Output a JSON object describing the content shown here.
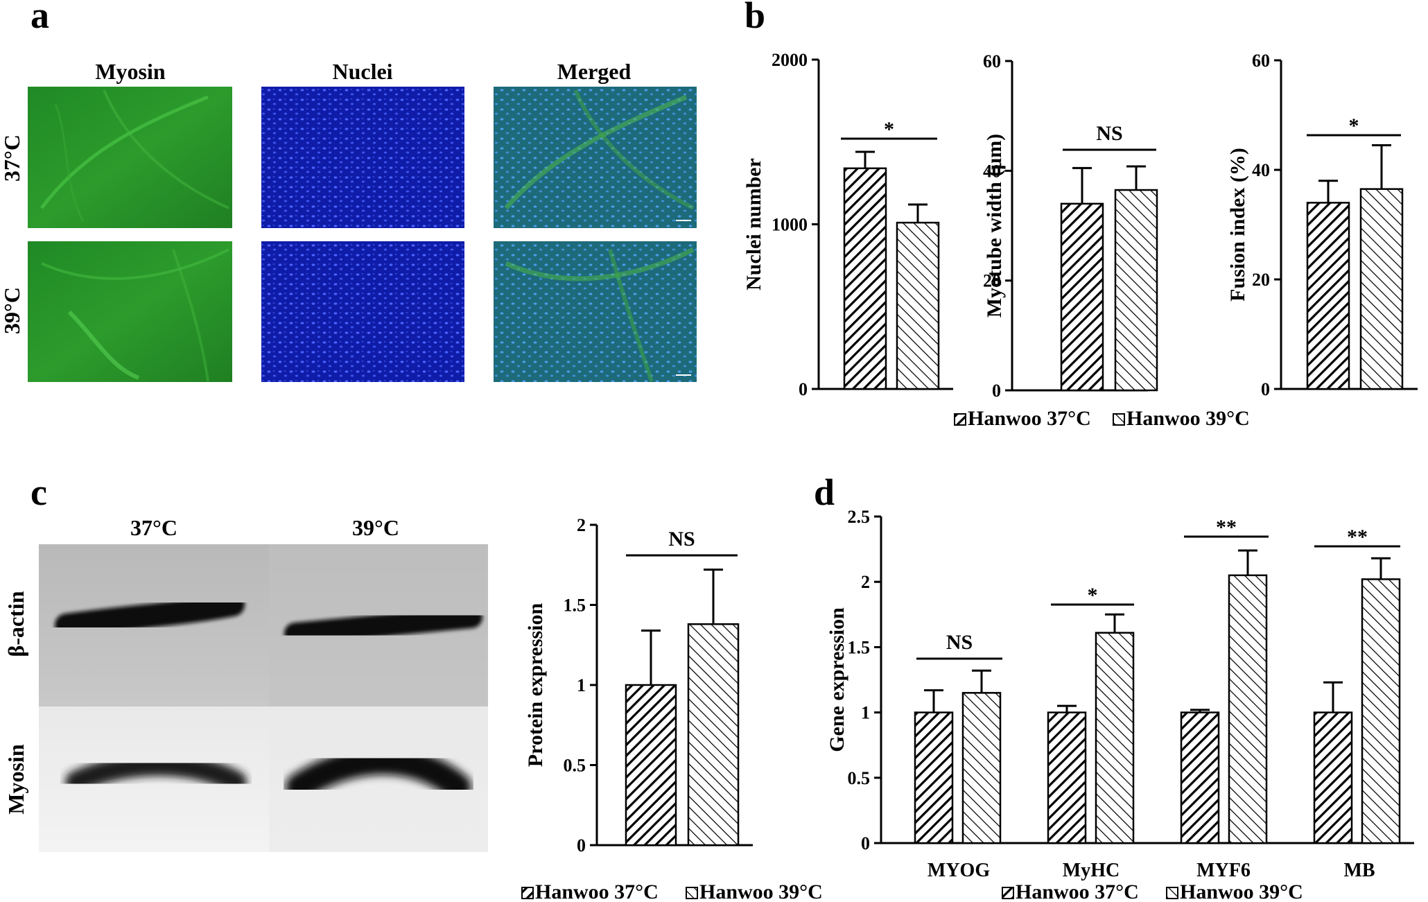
{
  "panels": {
    "a": {
      "letter": "a",
      "columns": [
        "Myosin",
        "Nuclei",
        "Merged"
      ],
      "rows": [
        "37°C",
        "39°C"
      ]
    },
    "b": {
      "letter": "b"
    },
    "c": {
      "letter": "c",
      "lanes": [
        "37°C",
        "39°C"
      ],
      "bands": [
        "β-actin",
        "Myosin"
      ]
    },
    "d": {
      "letter": "d"
    }
  },
  "colors": {
    "nuclei_blue": "#1a2ed8",
    "myosin_green": "#2f9a2a",
    "merged_cyan": "#2a7fb0",
    "bar_stroke": "#000000"
  },
  "legend": {
    "s37": "Hanwoo 37°C",
    "s39": "Hanwoo 39°C"
  },
  "chart_data": [
    {
      "id": "b1",
      "type": "bar",
      "ylabel": "Nuclei number",
      "ylim": [
        0,
        2000
      ],
      "yticks": [
        "0",
        "1000",
        "2000"
      ],
      "series": [
        {
          "name": "Hanwoo 37°C",
          "values": [
            1340
          ],
          "errors": [
            100
          ]
        },
        {
          "name": "Hanwoo 39°C",
          "values": [
            1010
          ],
          "errors": [
            110
          ]
        }
      ],
      "annotations": [
        "*"
      ]
    },
    {
      "id": "b2",
      "type": "bar",
      "ylabel": "Myotube width (μm)",
      "ylim": [
        0,
        60
      ],
      "yticks": [
        "0",
        "20",
        "40",
        "60"
      ],
      "series": [
        {
          "name": "Hanwoo 37°C",
          "values": [
            34
          ],
          "errors": [
            6.5
          ]
        },
        {
          "name": "Hanwoo 39°C",
          "values": [
            36.5
          ],
          "errors": [
            4.3
          ]
        }
      ],
      "annotations": [
        "NS"
      ]
    },
    {
      "id": "b3",
      "type": "bar",
      "ylabel": "Fusion index (%)",
      "ylim": [
        0,
        60
      ],
      "yticks": [
        "0",
        "20",
        "40",
        "60"
      ],
      "series": [
        {
          "name": "Hanwoo 37°C",
          "values": [
            34
          ],
          "errors": [
            4
          ]
        },
        {
          "name": "Hanwoo 39°C",
          "values": [
            36.5
          ],
          "errors": [
            8
          ]
        }
      ],
      "annotations": [
        "*"
      ]
    },
    {
      "id": "c1",
      "type": "bar",
      "ylabel": "Protein expression",
      "ylim": [
        0,
        2
      ],
      "yticks": [
        "0",
        "0.5",
        "1",
        "1.5",
        "2"
      ],
      "series": [
        {
          "name": "Hanwoo 37°C",
          "values": [
            1.0
          ],
          "errors": [
            0.34
          ]
        },
        {
          "name": "Hanwoo 39°C",
          "values": [
            1.38
          ],
          "errors": [
            0.34
          ]
        }
      ],
      "annotations": [
        "NS"
      ]
    },
    {
      "id": "d1",
      "type": "bar",
      "ylabel": "Gene expression",
      "ylim": [
        0,
        2.5
      ],
      "yticks": [
        "0",
        "0.5",
        "1",
        "1.5",
        "2",
        "2.5"
      ],
      "categories": [
        "MYOG",
        "MyHC",
        "MYF6",
        "MB"
      ],
      "series": [
        {
          "name": "Hanwoo 37°C",
          "values": [
            1.0,
            1.0,
            1.0,
            1.0
          ],
          "errors": [
            0.17,
            0.05,
            0.02,
            0.23
          ]
        },
        {
          "name": "Hanwoo 39°C",
          "values": [
            1.15,
            1.61,
            2.05,
            2.02
          ],
          "errors": [
            0.17,
            0.14,
            0.19,
            0.16
          ]
        }
      ],
      "annotations": [
        "NS",
        "*",
        "**",
        "**"
      ]
    }
  ]
}
